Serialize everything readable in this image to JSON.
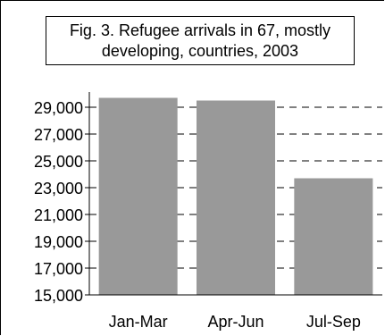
{
  "chart_data": {
    "type": "bar",
    "title": "Fig. 3. Refugee arrivals in 67, mostly developing, countries, 2003",
    "categories": [
      "Jan-Mar",
      "Apr-Jun",
      "Jul-Sep"
    ],
    "values": [
      29700,
      29500,
      23700
    ],
    "ylim": [
      15000,
      30000
    ],
    "yticks": [
      15000,
      17000,
      19000,
      21000,
      23000,
      25000,
      27000,
      29000
    ],
    "ytick_labels": [
      "15,000",
      "17,000",
      "19,000",
      "21,000",
      "23,000",
      "25,000",
      "27,000",
      "29,000"
    ],
    "xlabel": "",
    "ylabel": "",
    "grid": true,
    "bar_color": "#999999",
    "grid_color": "#000000"
  }
}
